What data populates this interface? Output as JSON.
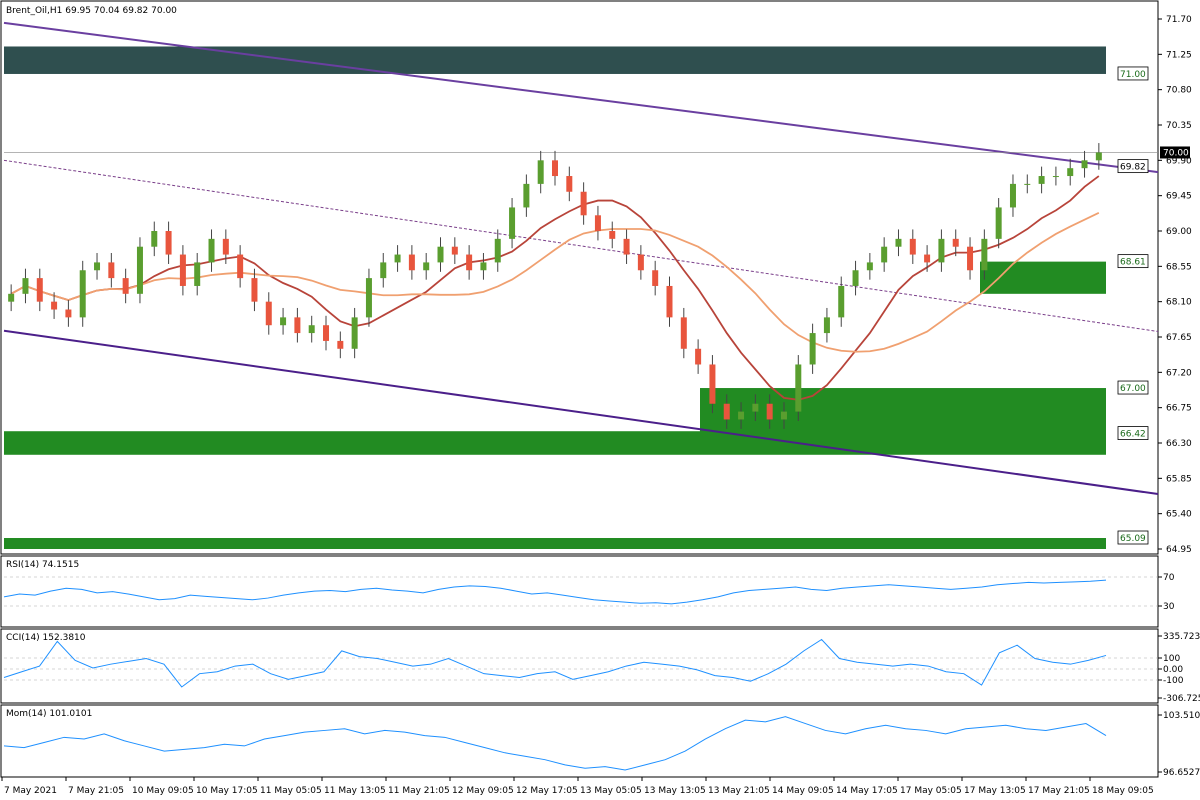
{
  "chart_data": {
    "type": "candlestick",
    "symbol_header": "Brent_Oil,H1  69.95 70.04 69.82 70.00",
    "price_ticks": [
      "71.70",
      "71.25",
      "70.80",
      "70.35",
      "69.90",
      "69.45",
      "69.00",
      "68.55",
      "68.10",
      "67.65",
      "67.20",
      "66.75",
      "66.30",
      "65.85",
      "65.40",
      "64.95"
    ],
    "price_range": [
      64.95,
      71.7
    ],
    "current_price": "70.00",
    "levels": [
      {
        "label": "71.00",
        "value": 71.0,
        "color": "#2f4f4f"
      },
      {
        "label": "69.82",
        "value": 69.82,
        "color": "#ffffff"
      },
      {
        "label": "68.61",
        "value": 68.61,
        "color": "#228b22"
      },
      {
        "label": "67.00",
        "value": 67.0,
        "color": "#228b22"
      },
      {
        "label": "66.42",
        "value": 66.42,
        "color": "#228b22"
      },
      {
        "label": "65.09",
        "value": 65.09,
        "color": "#228b22"
      }
    ],
    "zones": [
      {
        "from": 71.0,
        "to": 71.35,
        "color": "#2f4f4f"
      },
      {
        "from": 66.15,
        "to": 66.45,
        "color": "#228b22"
      },
      {
        "from": 66.42,
        "to": 67.0,
        "color": "#228b22"
      },
      {
        "from": 68.2,
        "to": 68.61,
        "color": "#228b22"
      },
      {
        "from": 64.95,
        "to": 65.09,
        "color": "#228b22"
      }
    ],
    "x_labels": [
      "7 May 2021",
      "7 May 21:05",
      "10 May 09:05",
      "10 May 17:05",
      "11 May 05:05",
      "11 May 13:05",
      "11 May 21:05",
      "12 May 09:05",
      "12 May 17:05",
      "13 May 05:05",
      "13 May 13:05",
      "13 May 21:05",
      "14 May 09:05",
      "14 May 17:05",
      "17 May 05:05",
      "17 May 13:05",
      "17 May 21:05",
      "18 May 09:05"
    ],
    "candles_close": [
      68.2,
      68.4,
      68.1,
      68.0,
      67.9,
      68.5,
      68.6,
      68.4,
      68.2,
      68.8,
      69.0,
      68.7,
      68.3,
      68.6,
      68.9,
      68.7,
      68.4,
      68.1,
      67.8,
      67.9,
      67.7,
      67.8,
      67.6,
      67.5,
      67.9,
      68.4,
      68.6,
      68.7,
      68.5,
      68.6,
      68.8,
      68.7,
      68.5,
      68.6,
      68.9,
      69.3,
      69.6,
      69.9,
      69.7,
      69.5,
      69.2,
      69.0,
      68.9,
      68.7,
      68.5,
      68.3,
      67.9,
      67.5,
      67.3,
      66.8,
      66.6,
      66.7,
      66.8,
      66.6,
      66.7,
      67.3,
      67.7,
      67.9,
      68.3,
      68.5,
      68.6,
      68.8,
      68.9,
      68.7,
      68.6,
      68.9,
      68.8,
      68.5,
      68.9,
      69.3,
      69.6,
      69.6,
      69.7,
      69.7,
      69.8,
      69.9,
      70.0
    ],
    "series": [
      {
        "name": "",
        "color": "#6a3fa0",
        "kind": "channel-upper"
      },
      {
        "name": "",
        "color": "#4b1f8a",
        "kind": "channel-lower"
      }
    ],
    "indicators": [
      {
        "label": "RSI(14) 74.1515",
        "ticks": [
          "70",
          "30"
        ],
        "range": [
          0,
          100
        ],
        "values": [
          45,
          50,
          48,
          55,
          60,
          58,
          52,
          54,
          50,
          45,
          40,
          42,
          48,
          46,
          44,
          42,
          40,
          43,
          48,
          52,
          55,
          56,
          54,
          58,
          60,
          57,
          55,
          52,
          58,
          62,
          64,
          63,
          60,
          55,
          50,
          52,
          48,
          44,
          40,
          38,
          36,
          34,
          35,
          33,
          36,
          40,
          45,
          52,
          56,
          58,
          60,
          62,
          58,
          56,
          60,
          62,
          64,
          66,
          64,
          62,
          60,
          58,
          60,
          62,
          66,
          68,
          70,
          69,
          70,
          71,
          72,
          74
        ]
      },
      {
        "label": "CCI(14) 152.3810",
        "ticks": [
          "335.7237",
          "100",
          "0.00",
          "-100",
          "-306.725"
        ],
        "range": [
          -306.725,
          335.7237
        ],
        "values": [
          -80,
          -20,
          40,
          300,
          100,
          20,
          60,
          90,
          120,
          60,
          -180,
          -40,
          -20,
          40,
          60,
          -40,
          -100,
          -60,
          -20,
          200,
          140,
          120,
          80,
          40,
          60,
          120,
          40,
          -40,
          -60,
          -80,
          -40,
          -20,
          -100,
          -60,
          -20,
          40,
          80,
          60,
          40,
          0,
          -60,
          -80,
          -120,
          -40,
          60,
          200,
          320,
          120,
          80,
          60,
          40,
          60,
          40,
          -20,
          -40,
          -160,
          180,
          260,
          120,
          80,
          60,
          100,
          152
        ]
      },
      {
        "label": "Mom(14) 101.0101",
        "ticks": [
          "103.5104",
          "96.6527"
        ],
        "range": [
          96.6527,
          103.5104
        ],
        "values": [
          99.8,
          99.6,
          100.2,
          100.8,
          100.6,
          101.2,
          100.4,
          99.8,
          99.2,
          99.4,
          99.6,
          100.0,
          99.8,
          100.6,
          101.0,
          101.4,
          101.6,
          101.8,
          101.2,
          101.6,
          101.4,
          101.0,
          100.8,
          100.2,
          99.6,
          99.0,
          98.6,
          98.2,
          97.6,
          97.2,
          97.4,
          97.0,
          97.6,
          98.2,
          99.2,
          100.6,
          101.8,
          102.8,
          102.6,
          103.2,
          102.4,
          101.6,
          101.2,
          101.8,
          102.2,
          101.8,
          101.6,
          101.2,
          101.8,
          102.0,
          102.2,
          101.8,
          101.6,
          102.0,
          102.4,
          101.0
        ]
      }
    ]
  }
}
